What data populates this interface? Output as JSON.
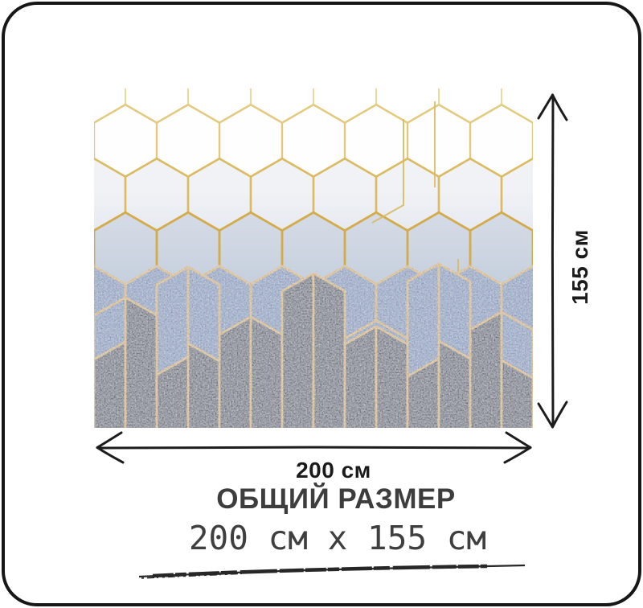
{
  "labels": {
    "height": "155 см",
    "width": "200 см",
    "title": "ОБЩИЙ РАЗМЕР",
    "size": "200 см x 155 см"
  },
  "icons": {
    "height_arrow": "double-headed-vertical-arrow",
    "width_arrow": "double-headed-horizontal-arrow",
    "brush": "charcoal-brush-stroke"
  },
  "colors": {
    "gold": "#cfa23a",
    "gold_light": "#e6cf8e",
    "navy": "#1c2341",
    "blue": "#6781ac",
    "blue_pale": "#9dadc6",
    "arrow": "#1c1c1c",
    "text_dark": "#1b1b1b",
    "text_grey": "#3d3d3d"
  }
}
